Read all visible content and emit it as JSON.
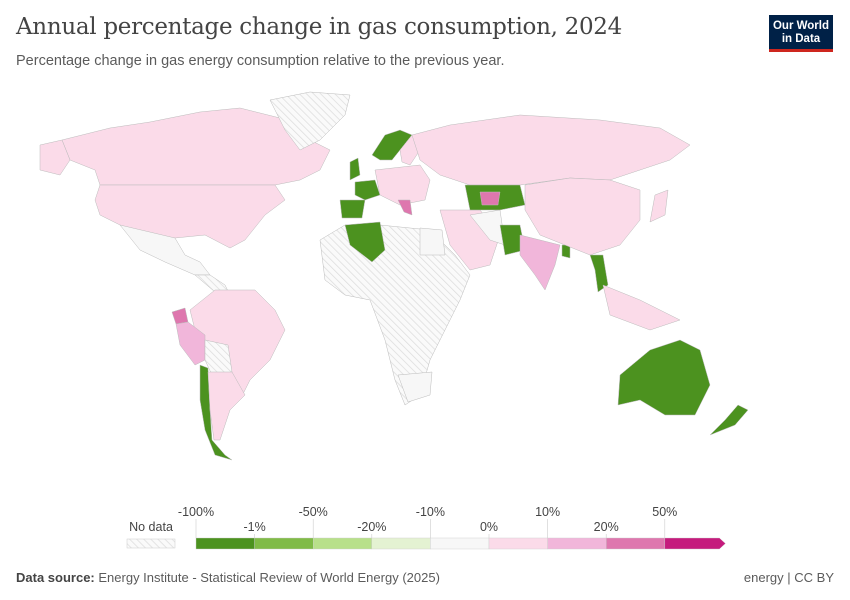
{
  "header": {
    "title": "Annual percentage change in gas consumption, 2024",
    "subtitle": "Percentage change in gas energy consumption relative to the previous year."
  },
  "logo": {
    "line1": "Our World",
    "line2": "in Data"
  },
  "legend": {
    "no_data_label": "No data",
    "bins": [
      {
        "color": "#4c921f"
      },
      {
        "color": "#80bb47"
      },
      {
        "color": "#b8e08a"
      },
      {
        "color": "#e4f2d2"
      },
      {
        "color": "#f7f7f7"
      },
      {
        "color": "#fbdbe9"
      },
      {
        "color": "#f1b6da"
      },
      {
        "color": "#de77ae"
      },
      {
        "color": "#c51b7d"
      }
    ],
    "top_labels": [
      "-100%",
      "-50%",
      "-10%",
      "10%",
      "50%"
    ],
    "bottom_labels": [
      "-1%",
      "-20%",
      "0%",
      "20%"
    ]
  },
  "footer": {
    "source_label": "Data source:",
    "source": "Energy Institute - Statistical Review of World Energy (2025)",
    "right": "energy | CC BY"
  }
}
